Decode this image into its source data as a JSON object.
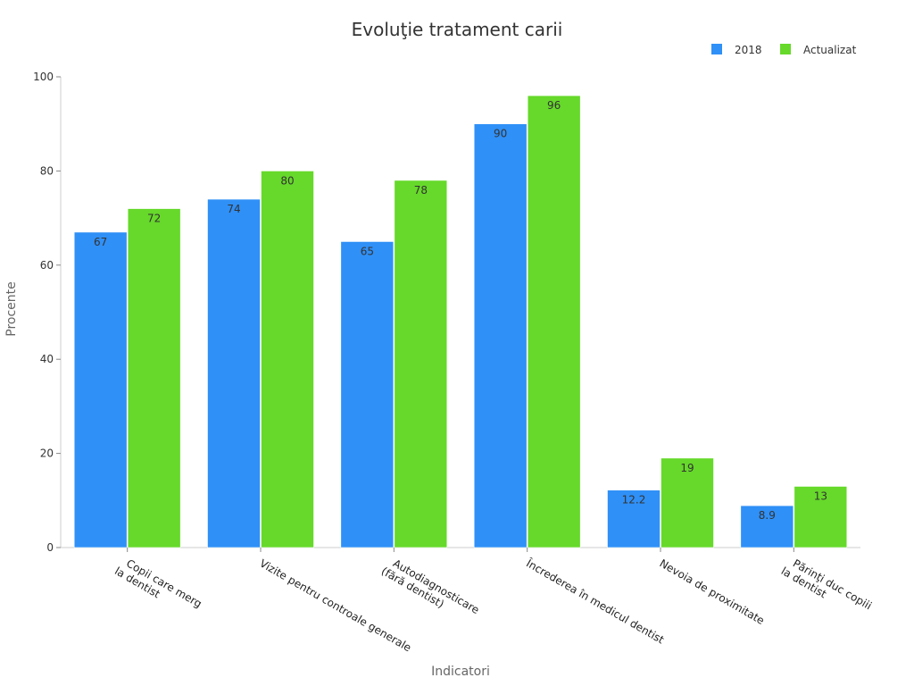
{
  "chart_data": {
    "type": "bar",
    "title": "Evoluţie tratament carii",
    "xlabel": "Indicatori",
    "ylabel": "Procente",
    "ylim": [
      0,
      100
    ],
    "yticks": [
      0,
      20,
      40,
      60,
      80,
      100
    ],
    "categories": [
      [
        "Copii care merg",
        "la dentist"
      ],
      [
        "Vizite pentru controale generale"
      ],
      [
        "Autodiagnosticare",
        "(fără dentist)"
      ],
      [
        "Încrederea în medicul dentist"
      ],
      [
        "Nevoia de proximitate"
      ],
      [
        "Părinţi duc copiii",
        "la dentist"
      ]
    ],
    "series": [
      {
        "name": "2018",
        "color": "#2f90f7",
        "values": [
          67,
          74,
          65,
          90,
          12.2,
          8.9
        ]
      },
      {
        "name": "Actualizat",
        "color": "#66d92a",
        "values": [
          72,
          80,
          78,
          96,
          19,
          13
        ]
      }
    ],
    "legend_position": "top-right",
    "grid": false
  }
}
